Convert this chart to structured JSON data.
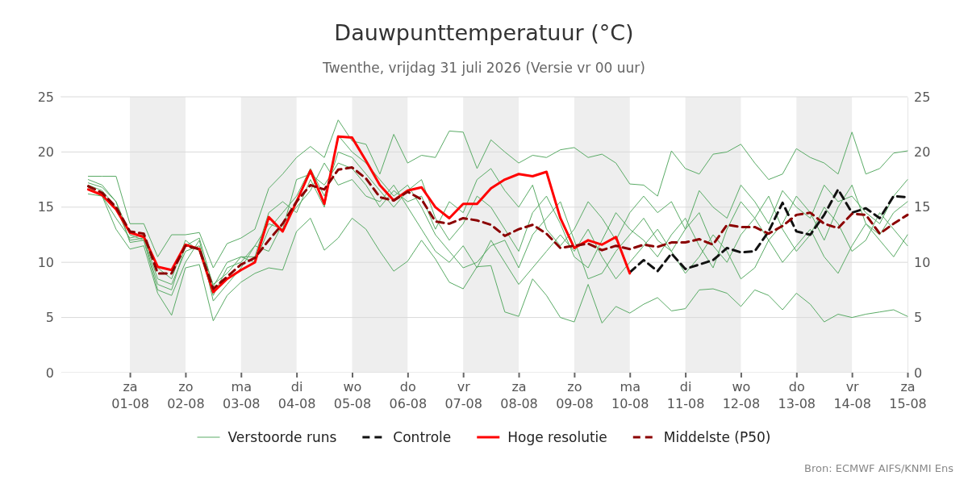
{
  "chart_data": {
    "type": "line",
    "title": "Dauwpunttemperatuur (°C)",
    "subtitle": "Twenthe, vrijdag 31 juli 2026 (Versie vr 00 uur)",
    "annotations": [
      "Bron: ECMWF AIFS/KNMI Ens"
    ],
    "x": [
      "2026-07-31T06:00",
      "2026-07-31T12:00",
      "2026-07-31T18:00",
      "2026-08-01T00:00",
      "2026-08-01T06:00",
      "2026-08-01T12:00",
      "2026-08-01T18:00",
      "2026-08-02T00:00",
      "2026-08-02T06:00",
      "2026-08-02T12:00",
      "2026-08-02T18:00",
      "2026-08-03T00:00",
      "2026-08-03T06:00",
      "2026-08-03T12:00",
      "2026-08-03T18:00",
      "2026-08-04T00:00",
      "2026-08-04T06:00",
      "2026-08-04T12:00",
      "2026-08-04T18:00",
      "2026-08-05T00:00",
      "2026-08-05T06:00",
      "2026-08-05T12:00",
      "2026-08-05T18:00",
      "2026-08-06T00:00",
      "2026-08-06T06:00",
      "2026-08-06T12:00",
      "2026-08-06T18:00",
      "2026-08-07T00:00",
      "2026-08-07T06:00",
      "2026-08-07T12:00",
      "2026-08-07T18:00",
      "2026-08-08T00:00",
      "2026-08-08T06:00",
      "2026-08-08T12:00",
      "2026-08-08T18:00",
      "2026-08-09T00:00",
      "2026-08-09T06:00",
      "2026-08-09T12:00",
      "2026-08-09T18:00",
      "2026-08-10T00:00",
      "2026-08-10T06:00",
      "2026-08-10T12:00",
      "2026-08-10T18:00",
      "2026-08-11T00:00",
      "2026-08-11T06:00",
      "2026-08-11T12:00",
      "2026-08-11T18:00",
      "2026-08-12T00:00",
      "2026-08-12T06:00",
      "2026-08-12T12:00",
      "2026-08-12T18:00",
      "2026-08-13T00:00",
      "2026-08-13T06:00",
      "2026-08-13T12:00",
      "2026-08-13T18:00",
      "2026-08-14T00:00",
      "2026-08-14T06:00",
      "2026-08-14T12:00",
      "2026-08-14T18:00",
      "2026-08-15T00:00"
    ],
    "series": [
      {
        "name": "Verstoorde runs",
        "color": "#5aab66",
        "line_style": "solid",
        "values": [
          17.8,
          17.8,
          17.8,
          13.5,
          13.5,
          10.5,
          12.5,
          12.5,
          12.7,
          9.5,
          11.7,
          12.2,
          13.0,
          16.7,
          18.0,
          19.5,
          20.5,
          19.5,
          22.9,
          21.0,
          20.7,
          18.0,
          21.6,
          19.0,
          19.7,
          19.5,
          21.9,
          21.8,
          18.5,
          21.1,
          20.0,
          19.0,
          19.7,
          19.5,
          20.2,
          20.4,
          19.5,
          19.8,
          19.0,
          17.1,
          17.0,
          16.0,
          20.1,
          18.5,
          18.0,
          19.8,
          20.0,
          20.7,
          19.0,
          17.5,
          18.0,
          20.3,
          19.5,
          19.0,
          18.0,
          21.8,
          18.0,
          18.5,
          19.9,
          20.1
        ]
      },
      {
        "color": "#5aab66",
        "line_style": "solid",
        "values": [
          16.2,
          16.0,
          13.0,
          11.2,
          11.5,
          7.2,
          5.2,
          9.5,
          9.8,
          4.7,
          7.0,
          8.2,
          9.0,
          9.5,
          9.3,
          12.8,
          14.0,
          11.1,
          12.2,
          14.0,
          13.0,
          11.0,
          9.2,
          10.1,
          12.0,
          10.3,
          8.2,
          7.6,
          9.6,
          9.7,
          5.5,
          5.1,
          8.5,
          7.0,
          5.0,
          4.6,
          8.0,
          4.5,
          6.0,
          5.4,
          6.2,
          6.8,
          5.6,
          5.8,
          7.5,
          7.6,
          7.2,
          6.0,
          7.5,
          7.0,
          5.7,
          7.2,
          6.2,
          4.6,
          5.3,
          5.0,
          5.3,
          5.5,
          5.7,
          5.1
        ]
      },
      {
        "color": "#5aab66",
        "line_style": "solid",
        "values": [
          17.0,
          16.5,
          15.0,
          12.0,
          12.2,
          8.5,
          8.0,
          11.0,
          11.5,
          8.0,
          9.0,
          10.5,
          10.0,
          13.0,
          14.5,
          16.0,
          18.5,
          16.0,
          20.0,
          19.5,
          18.0,
          16.5,
          15.0,
          16.5,
          17.5,
          14.0,
          12.0,
          13.5,
          16.0,
          15.0,
          13.0,
          11.0,
          14.5,
          16.0,
          13.5,
          10.5,
          9.5,
          12.0,
          14.5,
          13.0,
          12.0,
          10.5,
          12.5,
          14.0,
          11.5,
          9.5,
          13.0,
          15.5,
          14.0,
          12.0,
          13.5,
          16.0,
          14.5,
          12.0,
          15.0,
          17.0,
          13.5,
          12.5,
          14.5,
          15.5
        ]
      },
      {
        "color": "#5aab66",
        "line_style": "solid",
        "values": [
          17.5,
          17.0,
          15.5,
          12.5,
          12.0,
          7.5,
          7.0,
          10.0,
          12.0,
          6.5,
          8.0,
          9.5,
          11.5,
          11.0,
          13.5,
          15.0,
          16.5,
          19.0,
          17.0,
          17.5,
          16.0,
          15.5,
          17.0,
          15.0,
          13.0,
          11.0,
          10.0,
          11.5,
          9.5,
          12.0,
          10.0,
          8.0,
          9.5,
          11.0,
          12.5,
          11.0,
          13.0,
          10.5,
          8.5,
          10.0,
          11.5,
          13.0,
          11.0,
          9.0,
          10.5,
          12.5,
          11.0,
          8.5,
          9.5,
          12.0,
          10.0,
          11.5,
          13.0,
          10.5,
          9.0,
          11.5,
          13.5,
          12.0,
          10.5,
          12.5
        ]
      },
      {
        "color": "#5aab66",
        "line_style": "solid",
        "values": [
          16.8,
          16.0,
          14.0,
          12.2,
          12.5,
          9.5,
          8.5,
          12.0,
          11.0,
          7.0,
          9.5,
          10.0,
          11.5,
          13.5,
          13.0,
          17.5,
          18.0,
          17.0,
          19.0,
          18.5,
          17.0,
          15.0,
          16.5,
          15.5,
          16.0,
          13.0,
          15.5,
          14.5,
          17.5,
          18.5,
          16.5,
          15.0,
          17.0,
          13.0,
          11.5,
          13.0,
          15.5,
          14.0,
          12.0,
          14.5,
          16.0,
          14.5,
          15.5,
          13.0,
          16.5,
          15.0,
          14.0,
          17.0,
          15.5,
          13.5,
          16.5,
          15.0,
          14.0,
          17.0,
          15.5,
          16.0,
          14.5,
          13.5,
          16.0,
          17.5
        ]
      },
      {
        "color": "#5aab66",
        "line_style": "solid",
        "values": [
          17.2,
          16.8,
          15.5,
          11.8,
          12.0,
          8.0,
          7.5,
          11.5,
          12.2,
          7.8,
          10.0,
          10.5,
          10.5,
          14.5,
          15.5,
          14.5,
          17.5,
          15.0,
          21.5,
          20.0,
          19.0,
          17.5,
          16.0,
          17.0,
          15.0,
          12.5,
          11.0,
          9.5,
          10.0,
          11.5,
          12.0,
          9.5,
          12.5,
          14.0,
          15.5,
          12.0,
          8.5,
          9.0,
          11.0,
          12.5,
          14.0,
          12.0,
          11.0,
          13.0,
          14.5,
          11.5,
          10.0,
          12.5,
          14.0,
          16.0,
          13.0,
          11.0,
          12.5,
          15.0,
          13.5,
          11.0,
          12.0,
          14.5,
          13.0,
          11.5
        ]
      },
      {
        "name": "Controle",
        "color": "#111111",
        "line_style": "dashed",
        "values": [
          null,
          null,
          null,
          null,
          null,
          null,
          null,
          null,
          null,
          null,
          null,
          null,
          null,
          null,
          null,
          null,
          null,
          null,
          null,
          null,
          null,
          null,
          null,
          null,
          null,
          null,
          null,
          null,
          null,
          null,
          null,
          null,
          null,
          null,
          null,
          null,
          null,
          null,
          null,
          9.1,
          10.2,
          9.2,
          10.8,
          9.4,
          9.8,
          10.2,
          11.3,
          10.9,
          11.0,
          12.8,
          15.4,
          12.8,
          12.5,
          14.3,
          16.6,
          14.5,
          14.9,
          14.0,
          16.0,
          15.9
        ]
      },
      {
        "name": "Hoge resolutie",
        "color": "#ff0000",
        "line_style": "solid",
        "values": [
          16.6,
          16.1,
          14.8,
          12.7,
          12.3,
          9.6,
          9.3,
          11.6,
          11.2,
          7.3,
          8.5,
          9.3,
          10.0,
          14.1,
          12.8,
          15.5,
          18.3,
          15.3,
          21.4,
          21.3,
          19.2,
          17.0,
          15.6,
          16.5,
          16.8,
          15.0,
          14.0,
          15.3,
          15.3,
          16.7,
          17.5,
          18.0,
          17.8,
          18.2,
          14.0,
          11.3,
          12.0,
          11.6,
          12.3,
          9.0,
          null,
          null,
          null,
          null,
          null,
          null,
          null,
          null,
          null,
          null,
          null,
          null,
          null,
          null,
          null,
          null,
          null,
          null,
          null,
          null
        ]
      },
      {
        "name": "Middelste (P50)",
        "color": "#8b0000",
        "line_style": "dashed",
        "values": [
          16.9,
          16.3,
          15.0,
          12.8,
          12.6,
          9.0,
          9.0,
          11.5,
          11.2,
          7.6,
          8.7,
          9.8,
          10.4,
          12.0,
          13.5,
          15.5,
          17.0,
          16.6,
          18.4,
          18.6,
          17.6,
          15.9,
          15.6,
          16.4,
          15.7,
          13.7,
          13.5,
          14.0,
          13.8,
          13.4,
          12.4,
          13.0,
          13.4,
          12.6,
          11.3,
          11.5,
          11.7,
          11.1,
          11.5,
          11.2,
          11.6,
          11.4,
          11.8,
          11.8,
          12.1,
          11.6,
          13.4,
          13.2,
          13.2,
          12.6,
          13.3,
          14.3,
          14.5,
          13.5,
          13.1,
          14.4,
          14.3,
          12.6,
          13.5,
          14.3
        ]
      }
    ],
    "xlim": [
      "2026-07-30T18:00",
      "2026-08-15T00:00"
    ],
    "xticks": [
      {
        "value": "2026-08-01",
        "label": "za 01-08"
      },
      {
        "value": "2026-08-02",
        "label": "zo 02-08"
      },
      {
        "value": "2026-08-03",
        "label": "ma 03-08"
      },
      {
        "value": "2026-08-04",
        "label": "di 04-08"
      },
      {
        "value": "2026-08-05",
        "label": "wo 05-08"
      },
      {
        "value": "2026-08-06",
        "label": "do 06-08"
      },
      {
        "value": "2026-08-07",
        "label": "vr 07-08"
      },
      {
        "value": "2026-08-08",
        "label": "za 08-08"
      },
      {
        "value": "2026-08-09",
        "label": "zo 09-08"
      },
      {
        "value": "2026-08-10",
        "label": "ma 10-08"
      },
      {
        "value": "2026-08-11",
        "label": "di 11-08"
      },
      {
        "value": "2026-08-12",
        "label": "wo 12-08"
      },
      {
        "value": "2026-08-13",
        "label": "do 13-08"
      },
      {
        "value": "2026-08-14",
        "label": "vr 14-08"
      },
      {
        "value": "2026-08-15",
        "label": "za 15-08"
      }
    ],
    "ylim": [
      0,
      25
    ],
    "yticks": [
      0,
      5,
      10,
      15,
      20,
      25
    ],
    "y2lim": [
      0,
      25
    ],
    "y2ticks": [
      0,
      5,
      10,
      15,
      20,
      25
    ],
    "bands": [
      {
        "axis": "x",
        "from": "2026-08-01",
        "to": "2026-08-02",
        "color": "#eeeeee"
      },
      {
        "axis": "x",
        "from": "2026-08-03",
        "to": "2026-08-04",
        "color": "#eeeeee"
      },
      {
        "axis": "x",
        "from": "2026-08-05",
        "to": "2026-08-06",
        "color": "#eeeeee"
      },
      {
        "axis": "x",
        "from": "2026-08-07",
        "to": "2026-08-08",
        "color": "#eeeeee"
      },
      {
        "axis": "x",
        "from": "2026-08-09",
        "to": "2026-08-10",
        "color": "#eeeeee"
      },
      {
        "axis": "x",
        "from": "2026-08-11",
        "to": "2026-08-12",
        "color": "#eeeeee"
      },
      {
        "axis": "x",
        "from": "2026-08-13",
        "to": "2026-08-14",
        "color": "#eeeeee"
      }
    ],
    "grid": "y",
    "legend": "bottom"
  }
}
